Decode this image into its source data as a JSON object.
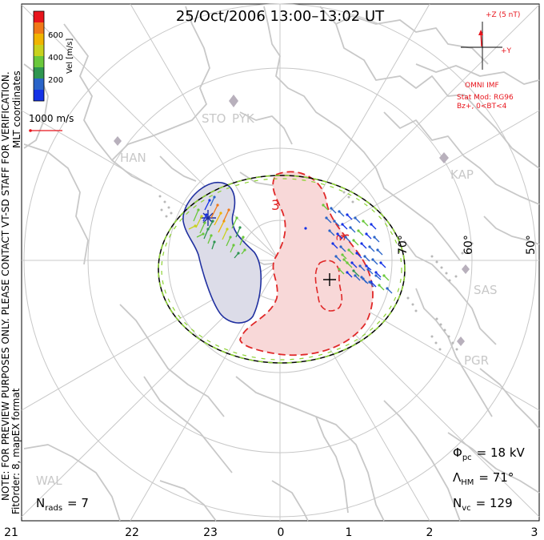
{
  "title": "25/Oct/2006 13:00–13:02 UT",
  "colorbar": {
    "label": "Vel [m/s]",
    "ticks": [
      "600",
      "400",
      "200"
    ],
    "colors": [
      "#e8141c",
      "#f07818",
      "#f0b400",
      "#c8d21e",
      "#6ac83c",
      "#2e9650",
      "#2a64c8",
      "#1432e6"
    ]
  },
  "coord_label": "MLT coordinates",
  "scale_vector": {
    "label": "1000 m/s"
  },
  "note": "NOTE: FOR PREVIEW PURPOSES ONLY. PLEASE CONTACT VT-SD STAFF FOR VERIFICATION.",
  "fit_order": "FitOrder: 8, mapEX format",
  "latitude_labels": [
    "70°",
    "60°",
    "50°"
  ],
  "mlt_labels": [
    "21",
    "22",
    "23",
    "0",
    "1",
    "2",
    "3"
  ],
  "stations": [
    "STO",
    "PYK",
    "HAN",
    "KAP",
    "SAS",
    "PGR",
    "WAL"
  ],
  "contour_label": "3",
  "imf": {
    "plus_z": "+Z (5 nT)",
    "plus_y": "+Y",
    "source": "OMNI IMF",
    "stat_mod": "Stat Mod: RG96",
    "condition": "Bz+, 0<BT<4"
  },
  "stats": {
    "phi_pc": "Φ",
    "phi_pc_sub": "pc",
    "phi_pc_value": "= 18 kV",
    "lambda_hm": "Λ",
    "lambda_hm_sub": "HM",
    "lambda_hm_value": "= 71°",
    "n_vc": "N",
    "n_vc_sub": "vc",
    "n_vc_value": "= 129",
    "n_rads": "N",
    "n_rads_sub": "rads",
    "n_rads_value": "= 7"
  },
  "colors": {
    "land": "#c8c8c8",
    "grid": "#c8c8c8",
    "positive_cell": "#f8d8d8",
    "negative_cell": "#dcdce8",
    "boundary_green": "#8cd232",
    "text_red": "#e8141c",
    "cell_blue": "#2030a0"
  }
}
